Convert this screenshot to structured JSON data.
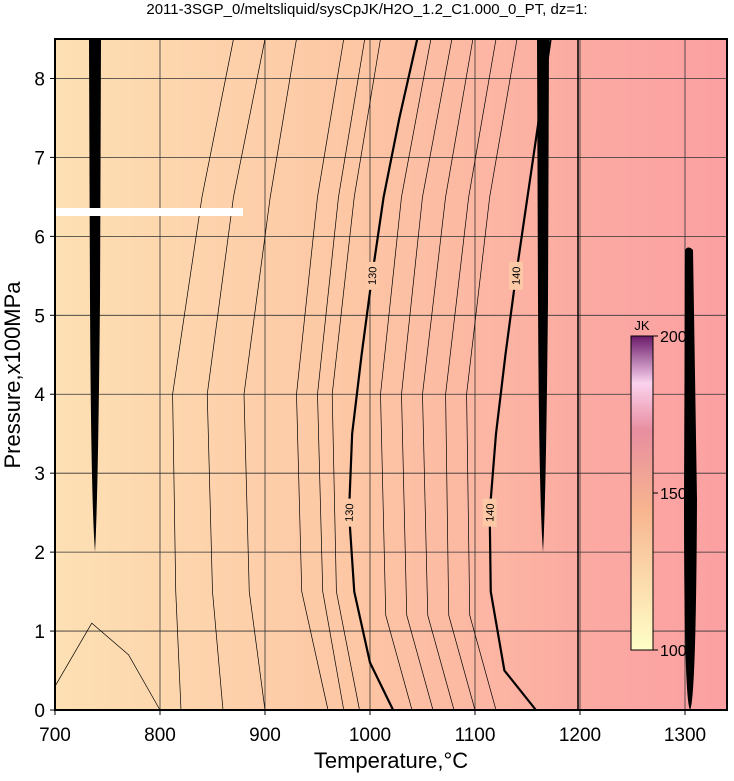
{
  "chart_data": {
    "type": "contour",
    "title": "2011-3SGP_0/meltsliquid/sysCpJK/H2O_1.2_C1.000_0_PT, dz=1:",
    "xlabel": "Temperature,°C",
    "ylabel": "Pressure,x100MPa",
    "xlim": [
      700,
      1340
    ],
    "ylim": [
      0,
      8.5
    ],
    "xticks": [
      700,
      800,
      900,
      1000,
      1100,
      1200,
      1300
    ],
    "yticks": [
      0,
      1,
      2,
      3,
      4,
      5,
      6,
      7,
      8
    ],
    "grid": true,
    "contours": [
      {
        "level": 130,
        "x": [
          1022,
          1000,
          985,
          980,
          983,
          992,
          1002,
          1013,
          1028,
          1045
        ],
        "y": [
          0,
          0.6,
          1.5,
          2.5,
          3.5,
          4.5,
          5.5,
          6.5,
          7.5,
          8.5
        ]
      },
      {
        "level": 140,
        "x": [
          1158,
          1128,
          1115,
          1114,
          1120,
          1129,
          1139,
          1150,
          1161,
          1172
        ],
        "y": [
          0,
          0.5,
          1.5,
          2.5,
          3.5,
          4.5,
          5.5,
          6.5,
          7.5,
          8.5
        ]
      },
      {
        "x": [
          960,
          935,
          930,
          950,
          975
        ],
        "y": [
          0,
          1.5,
          4,
          6.5,
          8.5
        ]
      },
      {
        "x": [
          975,
          955,
          950,
          970,
          995
        ],
        "y": [
          0,
          1.5,
          4,
          6.5,
          8.5
        ]
      },
      {
        "x": [
          990,
          968,
          964,
          985,
          1010
        ],
        "y": [
          0,
          1.5,
          4,
          6.5,
          8.5
        ]
      },
      {
        "x": [
          1040,
          1015,
          1010,
          1030,
          1058
        ],
        "y": [
          0,
          1.2,
          4,
          6.5,
          8.5
        ]
      },
      {
        "x": [
          1060,
          1035,
          1030,
          1050,
          1078
        ],
        "y": [
          0,
          1.2,
          4,
          6.5,
          8.5
        ]
      },
      {
        "x": [
          1080,
          1055,
          1050,
          1072,
          1098
        ],
        "y": [
          0,
          1.2,
          4,
          6.5,
          8.5
        ]
      },
      {
        "x": [
          1100,
          1075,
          1072,
          1094,
          1120
        ],
        "y": [
          0,
          1.2,
          4,
          6.5,
          8.5
        ]
      },
      {
        "x": [
          1120,
          1095,
          1092,
          1114,
          1140
        ],
        "y": [
          0,
          1.2,
          4,
          6.5,
          8.5
        ]
      },
      {
        "x": [
          900,
          885,
          880,
          905,
          930
        ],
        "y": [
          0,
          1.5,
          4,
          6.5,
          8.5
        ]
      },
      {
        "x": [
          860,
          850,
          845,
          870,
          900
        ],
        "y": [
          0,
          1.5,
          4,
          6.5,
          8.5
        ]
      },
      {
        "x": [
          820,
          815,
          812,
          840,
          870
        ],
        "y": [
          0,
          1.5,
          4,
          6.5,
          8.5
        ]
      },
      {
        "x": [
          700,
          735,
          770,
          800
        ],
        "y": [
          0.3,
          1.1,
          0.7,
          0
        ]
      }
    ],
    "colorbar": {
      "label": "JK",
      "lim": [
        100,
        200
      ],
      "ticks": [
        100,
        150,
        200
      ]
    }
  }
}
